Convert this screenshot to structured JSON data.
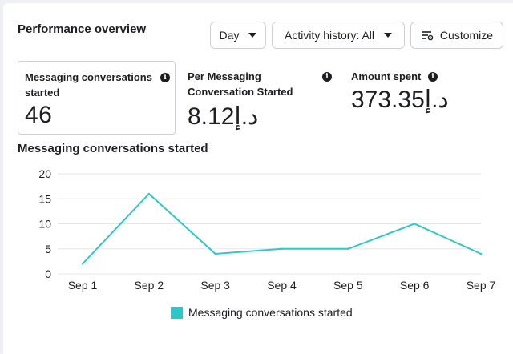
{
  "header": {
    "title": "Performance overview",
    "day_label": "Day",
    "activity_label": "Activity history: All",
    "customize_label": "Customize"
  },
  "metrics": [
    {
      "label": "Messaging conversations started",
      "value": "46"
    },
    {
      "label": "Per Messaging Conversation Started",
      "value": "8.12د.إ"
    },
    {
      "label": "Amount spent",
      "value": "373.35د.إ"
    }
  ],
  "icons": {
    "info": "info-icon",
    "dropdown": "chevron-down-icon",
    "customize": "sliders-icon"
  },
  "chart_title": "Messaging conversations started",
  "colors": {
    "series": "#2ec7c9",
    "grid": "#e4e6eb"
  },
  "chart_data": {
    "type": "line",
    "categories": [
      "Sep 1",
      "Sep 2",
      "Sep 3",
      "Sep 4",
      "Sep 5",
      "Sep 6",
      "Sep 7"
    ],
    "series": [
      {
        "name": "Messaging conversations started",
        "values": [
          2,
          16,
          4,
          5,
          5,
          10,
          4
        ]
      }
    ],
    "ylim": [
      0,
      20
    ],
    "yticks": [
      0,
      5,
      10,
      15,
      20
    ],
    "grid": true,
    "legend": "bottom"
  }
}
